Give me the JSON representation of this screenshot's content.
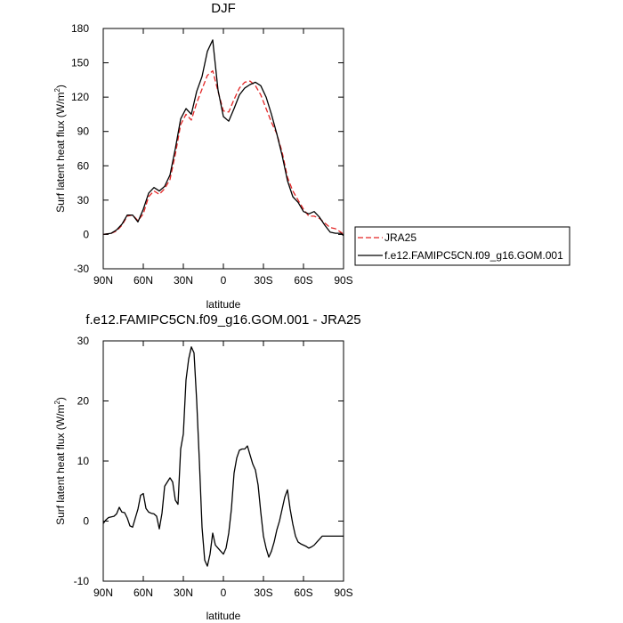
{
  "chart_data": [
    {
      "type": "line",
      "title": "DJF",
      "xlabel": "latitude",
      "ylabel": "Surf latent heat flux (W/m",
      "ylabel_sup": "2",
      "ylabel_close": ")",
      "xlim": [
        90,
        -90
      ],
      "ylim": [
        -30,
        180
      ],
      "xticks": [
        {
          "value": 90,
          "label": "90N"
        },
        {
          "value": 60,
          "label": "60N"
        },
        {
          "value": 30,
          "label": "30N"
        },
        {
          "value": 0,
          "label": "0"
        },
        {
          "value": -30,
          "label": "30S"
        },
        {
          "value": -60,
          "label": "60S"
        },
        {
          "value": -90,
          "label": "90S"
        }
      ],
      "yticks": [
        {
          "value": -30,
          "label": "-30"
        },
        {
          "value": 0,
          "label": "0"
        },
        {
          "value": 30,
          "label": "30"
        },
        {
          "value": 60,
          "label": "60"
        },
        {
          "value": 90,
          "label": "90"
        },
        {
          "value": 120,
          "label": "120"
        },
        {
          "value": 150,
          "label": "150"
        },
        {
          "value": 180,
          "label": "180"
        }
      ],
      "legend": {
        "placement": "right"
      },
      "series": [
        {
          "name": "JRA25",
          "color": "#e32424",
          "dash": "dashed",
          "x": [
            90,
            84,
            80,
            76,
            72,
            68,
            64,
            60,
            56,
            52,
            48,
            44,
            40,
            36,
            32,
            28,
            24,
            20,
            16,
            12,
            8,
            4,
            0,
            -4,
            -8,
            -12,
            -16,
            -20,
            -24,
            -28,
            -32,
            -36,
            -40,
            -44,
            -48,
            -52,
            -56,
            -60,
            -64,
            -68,
            -72,
            -76,
            -80,
            -84,
            -88,
            -90
          ],
          "y": [
            0,
            1,
            3,
            8,
            16,
            17,
            12,
            18,
            33,
            38,
            35,
            40,
            48,
            70,
            96,
            105,
            100,
            115,
            127,
            139,
            143,
            125,
            108,
            107,
            118,
            128,
            133,
            134,
            130,
            122,
            110,
            98,
            88,
            72,
            50,
            38,
            30,
            22,
            16,
            16,
            14,
            10,
            6,
            5,
            2,
            0
          ]
        },
        {
          "name": "f.e12.FAMIPC5CN.f09_g16.GOM.001",
          "color": "#000000",
          "dash": "solid",
          "x": [
            90,
            84,
            80,
            76,
            72,
            68,
            64,
            60,
            56,
            52,
            48,
            44,
            40,
            36,
            32,
            28,
            24,
            20,
            16,
            12,
            8,
            4,
            0,
            -4,
            -8,
            -12,
            -16,
            -20,
            -24,
            -28,
            -32,
            -36,
            -40,
            -44,
            -48,
            -52,
            -56,
            -60,
            -64,
            -68,
            -72,
            -76,
            -80,
            -84,
            -88,
            -90
          ],
          "y": [
            0,
            1,
            4,
            9,
            17,
            17,
            11,
            22,
            36,
            41,
            38,
            42,
            52,
            75,
            101,
            110,
            105,
            125,
            138,
            160,
            170,
            126,
            103,
            99,
            110,
            122,
            128,
            131,
            133,
            130,
            120,
            105,
            88,
            69,
            47,
            33,
            28,
            20,
            18,
            20,
            15,
            8,
            2,
            1,
            1,
            -1
          ]
        }
      ]
    },
    {
      "type": "line",
      "title": "f.e12.FAMIPC5CN.f09_g16.GOM.001 - JRA25",
      "xlabel": "latitude",
      "ylabel": "Surf latent heat flux (W/m",
      "ylabel_sup": "2",
      "ylabel_close": ")",
      "xlim": [
        90,
        -90
      ],
      "ylim": [
        -10,
        30
      ],
      "xticks": [
        {
          "value": 90,
          "label": "90N"
        },
        {
          "value": 60,
          "label": "60N"
        },
        {
          "value": 30,
          "label": "30N"
        },
        {
          "value": 0,
          "label": "0"
        },
        {
          "value": -30,
          "label": "30S"
        },
        {
          "value": -60,
          "label": "60S"
        },
        {
          "value": -90,
          "label": "90S"
        }
      ],
      "yticks": [
        {
          "value": -10,
          "label": "-10"
        },
        {
          "value": 0,
          "label": "0"
        },
        {
          "value": 10,
          "label": "10"
        },
        {
          "value": 20,
          "label": "20"
        },
        {
          "value": 30,
          "label": "30"
        }
      ],
      "series": [
        {
          "color": "#000000",
          "dash": "solid",
          "x": [
            90,
            88,
            86,
            82,
            80,
            78,
            76,
            74,
            72,
            70,
            68,
            64,
            62,
            60,
            58,
            56,
            54,
            52,
            50,
            48,
            46,
            44,
            42,
            40,
            38,
            36,
            34,
            32,
            30,
            28,
            26,
            24,
            22,
            20,
            18,
            16,
            14,
            12,
            10,
            8,
            6,
            4,
            2,
            0,
            -2,
            -4,
            -6,
            -8,
            -10,
            -12,
            -14,
            -16,
            -18,
            -20,
            -22,
            -24,
            -26,
            -28,
            -30,
            -32,
            -34,
            -36,
            -38,
            -40,
            -42,
            -44,
            -46,
            -48,
            -50,
            -52,
            -54,
            -56,
            -58,
            -60,
            -62,
            -64,
            -66,
            -68,
            -70,
            -72,
            -74,
            -76,
            -78,
            -80,
            -82,
            -84,
            -86,
            -88,
            -90
          ],
          "y": [
            -0.4,
            0.2,
            0.6,
            0.8,
            1.2,
            2.3,
            1.5,
            1.4,
            0.5,
            -0.8,
            -1.0,
            2.0,
            4.3,
            4.6,
            2.1,
            1.5,
            1.3,
            1.2,
            0.8,
            -1.3,
            1.3,
            5.8,
            6.5,
            7.2,
            6.5,
            3.5,
            2.8,
            12.0,
            14.5,
            23.5,
            27.0,
            29.0,
            28.0,
            20.0,
            10.0,
            -1.0,
            -6.5,
            -7.5,
            -5.5,
            -2.0,
            -4.0,
            -4.5,
            -5.0,
            -5.5,
            -4.5,
            -2.0,
            2.0,
            8.0,
            10.5,
            11.8,
            12.0,
            12.0,
            12.5,
            11.0,
            9.5,
            8.5,
            6.0,
            1.5,
            -2.5,
            -4.5,
            -6.0,
            -5.0,
            -3.5,
            -1.5,
            0.0,
            2.0,
            4.0,
            5.2,
            2.0,
            -0.5,
            -2.5,
            -3.5,
            -3.8,
            -4.0,
            -4.2,
            -4.5,
            -4.3,
            -4.0,
            -3.5,
            -3.0,
            -2.5,
            -2.5,
            -2.5,
            -2.5,
            -2.5,
            -2.5,
            -2.5,
            -2.5,
            -2.5
          ]
        }
      ]
    }
  ]
}
